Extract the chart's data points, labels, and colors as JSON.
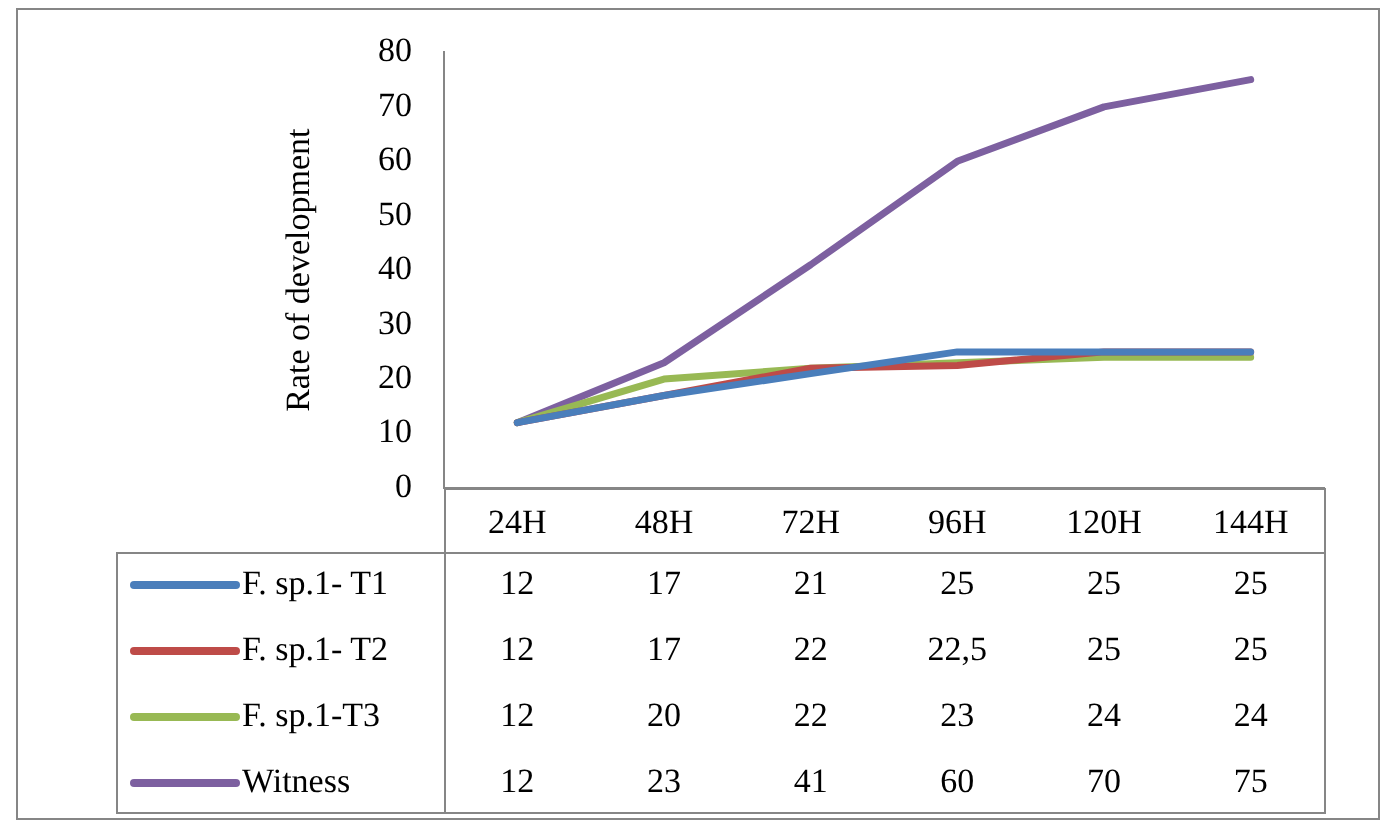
{
  "chart_data": {
    "type": "line",
    "ylabel": "Rate of development",
    "categories": [
      "24H",
      "48H",
      "72H",
      "96H",
      "120H",
      "144H"
    ],
    "series": [
      {
        "name": "F. sp.1- T1",
        "color": "#4a7ebb",
        "values": [
          12,
          17,
          21,
          25,
          25,
          25
        ],
        "value_labels": [
          "12",
          "17",
          "21",
          "25",
          "25",
          "25"
        ]
      },
      {
        "name": "F. sp.1- T2",
        "color": "#be4b48",
        "values": [
          12,
          17,
          22,
          22.5,
          25,
          25
        ],
        "value_labels": [
          "12",
          "17",
          "22",
          "22,5",
          "25",
          "25"
        ]
      },
      {
        "name": "F. sp.1-T3",
        "color": "#98b954",
        "values": [
          12,
          20,
          22,
          23,
          24,
          24
        ],
        "value_labels": [
          "12",
          "20",
          "22",
          "23",
          "24",
          "24"
        ]
      },
      {
        "name": "Witness",
        "color": "#7d60a0",
        "values": [
          12,
          23,
          41,
          60,
          70,
          75
        ],
        "value_labels": [
          "12",
          "23",
          "41",
          "60",
          "70",
          "75"
        ]
      }
    ],
    "ylim": [
      0,
      80
    ],
    "yticks": [
      0,
      10,
      20,
      30,
      40,
      50,
      60,
      70,
      80
    ],
    "grid": false,
    "legend": "bottom",
    "marker": "none",
    "line_style": "solid"
  }
}
